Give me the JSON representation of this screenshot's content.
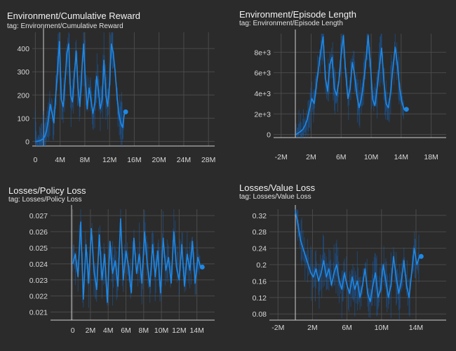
{
  "colors": {
    "line": "#1e88e5",
    "band": "#1565c0",
    "grid": "#4a4a4a",
    "axis": "#cfcfcf",
    "bg": "#2b2b2b"
  },
  "chart_data": [
    {
      "type": "line",
      "title": "Environment/Cumulative Reward",
      "subtitle": "tag: Environment/Cumulative Reward",
      "xticks": [
        "0",
        "4M",
        "8M",
        "12M",
        "16M",
        "20M",
        "24M",
        "28M"
      ],
      "xtick_values": [
        0,
        4000000,
        8000000,
        12000000,
        16000000,
        20000000,
        24000000,
        28000000
      ],
      "yticks": [
        "0",
        "100",
        "200",
        "300",
        "400"
      ],
      "ytick_values": [
        0,
        100,
        200,
        300,
        400
      ],
      "xlim": [
        -500000,
        29000000
      ],
      "ylim": [
        -20,
        470
      ],
      "grid": true,
      "series": [
        {
          "x": [
            0,
            300000,
            600000,
            900000,
            1200000,
            1500000,
            1800000,
            2100000,
            2400000,
            2700000,
            3000000,
            3300000,
            3600000,
            3900000,
            4200000,
            4500000,
            4800000,
            5100000,
            5400000,
            5700000,
            6000000,
            6300000,
            6600000,
            6900000,
            7200000,
            7500000,
            7800000,
            8100000,
            8400000,
            8700000,
            9000000,
            9300000,
            9600000,
            9900000,
            10200000,
            10500000,
            10800000,
            11100000,
            11400000,
            11700000,
            12000000,
            12300000,
            12600000,
            12900000,
            13200000,
            13500000,
            13800000,
            14100000,
            14400000
          ],
          "y": [
            0,
            0,
            2,
            5,
            10,
            20,
            45,
            90,
            160,
            120,
            80,
            200,
            310,
            430,
            180,
            150,
            260,
            380,
            420,
            200,
            170,
            280,
            390,
            230,
            150,
            300,
            420,
            260,
            140,
            230,
            180,
            120,
            160,
            280,
            220,
            140,
            180,
            350,
            200,
            150,
            250,
            420,
            380,
            300,
            200,
            120,
            80,
            60,
            120
          ]
        }
      ],
      "last_point": {
        "x": 14600000,
        "y": 127
      }
    },
    {
      "type": "line",
      "title": "Environment/Episode Length",
      "subtitle": "tag: Environment/Episode Length",
      "xticks": [
        "-2M",
        "2M",
        "6M",
        "10M",
        "14M",
        "18M"
      ],
      "xtick_values": [
        -2000000,
        2000000,
        6000000,
        10000000,
        14000000,
        18000000
      ],
      "yticks": [
        "0",
        "2e+3",
        "4e+3",
        "6e+3",
        "8e+3"
      ],
      "ytick_values": [
        0,
        2000,
        4000,
        6000,
        8000
      ],
      "xlim": [
        -3000000,
        20000000
      ],
      "ylim": [
        -300,
        9800
      ],
      "grid": true,
      "series": [
        {
          "x": [
            0,
            300000,
            600000,
            900000,
            1200000,
            1500000,
            1800000,
            2100000,
            2400000,
            2700000,
            3000000,
            3300000,
            3600000,
            3900000,
            4200000,
            4500000,
            4800000,
            5100000,
            5400000,
            5700000,
            6000000,
            6300000,
            6600000,
            6900000,
            7200000,
            7500000,
            7800000,
            8100000,
            8400000,
            8700000,
            9000000,
            9300000,
            9600000,
            9900000,
            10200000,
            10500000,
            10800000,
            11100000,
            11400000,
            11700000,
            12000000,
            12300000,
            12600000,
            12900000,
            13200000,
            13500000,
            13800000,
            14100000,
            14400000
          ],
          "y": [
            0,
            150,
            300,
            500,
            900,
            1500,
            2500,
            3500,
            3000,
            4800,
            6500,
            8200,
            9500,
            5500,
            4200,
            6800,
            7500,
            4500,
            3800,
            5200,
            7800,
            9600,
            6000,
            3500,
            4500,
            7000,
            5800,
            3800,
            2600,
            3500,
            5000,
            7200,
            9600,
            6800,
            3400,
            2800,
            4500,
            6600,
            8400,
            5200,
            3000,
            2600,
            4200,
            6500,
            8500,
            6800,
            4500,
            3200,
            2400
          ]
        }
      ],
      "last_point": {
        "x": 14700000,
        "y": 2450
      }
    },
    {
      "type": "line",
      "title": "Losses/Policy Loss",
      "subtitle": "tag: Losses/Policy Loss",
      "xticks": [
        "0",
        "2M",
        "4M",
        "6M",
        "8M",
        "10M",
        "12M",
        "14M"
      ],
      "xtick_values": [
        0,
        2000000,
        4000000,
        6000000,
        8000000,
        10000000,
        12000000,
        14000000
      ],
      "yticks": [
        "0.021",
        "0.022",
        "0.023",
        "0.024",
        "0.025",
        "0.026",
        "0.027"
      ],
      "ytick_values": [
        0.021,
        0.022,
        0.023,
        0.024,
        0.025,
        0.026,
        0.027
      ],
      "xlim": [
        -2500000,
        16000000
      ],
      "ylim": [
        0.0205,
        0.0274
      ],
      "grid": true,
      "series": [
        {
          "x": [
            0,
            300000,
            600000,
            900000,
            1200000,
            1500000,
            1800000,
            2100000,
            2400000,
            2700000,
            3000000,
            3300000,
            3600000,
            3900000,
            4200000,
            4500000,
            4800000,
            5100000,
            5400000,
            5700000,
            6000000,
            6300000,
            6600000,
            6900000,
            7200000,
            7500000,
            7800000,
            8100000,
            8400000,
            8700000,
            9000000,
            9300000,
            9600000,
            9900000,
            10200000,
            10500000,
            10800000,
            11100000,
            11400000,
            11700000,
            12000000,
            12300000,
            12600000,
            12900000,
            13200000,
            13500000,
            13800000,
            14100000,
            14400000
          ],
          "y": [
            0.024,
            0.0246,
            0.0232,
            0.0266,
            0.0218,
            0.0252,
            0.0228,
            0.0262,
            0.0236,
            0.0224,
            0.0258,
            0.023,
            0.0246,
            0.0216,
            0.0254,
            0.0234,
            0.0242,
            0.0226,
            0.0268,
            0.023,
            0.0248,
            0.0238,
            0.0222,
            0.0256,
            0.0234,
            0.0246,
            0.0228,
            0.026,
            0.024,
            0.0226,
            0.0252,
            0.0232,
            0.0248,
            0.0222,
            0.0256,
            0.0236,
            0.0244,
            0.0228,
            0.026,
            0.0238,
            0.023,
            0.0252,
            0.0226,
            0.0246,
            0.0236,
            0.0254,
            0.0228,
            0.0244,
            0.0238
          ]
        }
      ],
      "last_point": {
        "x": 14600000,
        "y": 0.0238
      }
    },
    {
      "type": "line",
      "title": "Losses/Value Loss",
      "subtitle": "tag: Losses/Value Loss",
      "xticks": [
        "-2M",
        "2M",
        "6M",
        "10M",
        "14M"
      ],
      "xtick_values": [
        -2000000,
        2000000,
        6000000,
        10000000,
        14000000
      ],
      "yticks": [
        "0.08",
        "0.12",
        "0.16",
        "0.2",
        "0.24",
        "0.28",
        "0.32"
      ],
      "ytick_values": [
        0.08,
        0.12,
        0.16,
        0.2,
        0.24,
        0.28,
        0.32
      ],
      "xlim": [
        -3000000,
        17500000
      ],
      "ylim": [
        0.065,
        0.335
      ],
      "grid": true,
      "series": [
        {
          "x": [
            0,
            300000,
            600000,
            900000,
            1200000,
            1500000,
            1800000,
            2100000,
            2400000,
            2700000,
            3000000,
            3300000,
            3600000,
            3900000,
            4200000,
            4500000,
            4800000,
            5100000,
            5400000,
            5700000,
            6000000,
            6300000,
            6600000,
            6900000,
            7200000,
            7500000,
            7800000,
            8100000,
            8400000,
            8700000,
            9000000,
            9300000,
            9600000,
            9900000,
            10200000,
            10500000,
            10800000,
            11100000,
            11400000,
            11700000,
            12000000,
            12300000,
            12600000,
            12900000,
            13200000,
            13500000,
            13800000,
            14100000,
            14400000
          ],
          "y": [
            0.33,
            0.3,
            0.26,
            0.24,
            0.22,
            0.2,
            0.18,
            0.17,
            0.19,
            0.16,
            0.18,
            0.21,
            0.17,
            0.19,
            0.15,
            0.18,
            0.2,
            0.16,
            0.14,
            0.18,
            0.15,
            0.13,
            0.17,
            0.14,
            0.16,
            0.12,
            0.15,
            0.19,
            0.13,
            0.11,
            0.15,
            0.18,
            0.12,
            0.14,
            0.2,
            0.16,
            0.12,
            0.15,
            0.22,
            0.17,
            0.13,
            0.16,
            0.21,
            0.15,
            0.12,
            0.18,
            0.24,
            0.2,
            0.22
          ]
        }
      ],
      "last_point": {
        "x": 14600000,
        "y": 0.22
      }
    }
  ]
}
